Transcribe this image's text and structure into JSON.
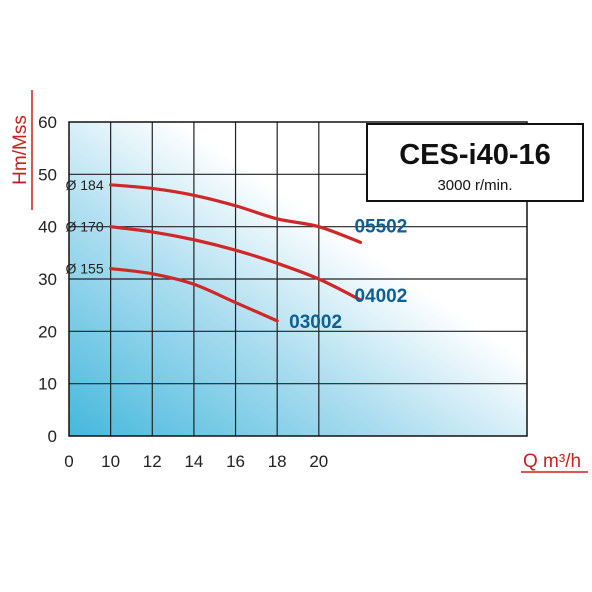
{
  "chart_data": {
    "type": "line",
    "title": "CES-i40-16",
    "subtitle": "3000 r/min.",
    "xlabel": "Q m³/h",
    "ylabel": "Hm/Mss",
    "xlim": [
      0,
      22
    ],
    "ylim": [
      0,
      60
    ],
    "x_ticks": [
      {
        "value": 0,
        "label": "0"
      },
      {
        "value": 2,
        "label": "10"
      },
      {
        "value": 4,
        "label": "12"
      },
      {
        "value": 6,
        "label": "14"
      },
      {
        "value": 8,
        "label": "16"
      },
      {
        "value": 10,
        "label": "18"
      },
      {
        "value": 12,
        "label": "20"
      }
    ],
    "y_ticks": [
      0,
      10,
      20,
      30,
      40,
      50,
      60
    ],
    "grid": true,
    "series": [
      {
        "name": "05502",
        "impeller": "Ø 184",
        "color": "#d02828",
        "points": [
          [
            10,
            48
          ],
          [
            12,
            47.3
          ],
          [
            14,
            46
          ],
          [
            16,
            44
          ],
          [
            18,
            41.5
          ],
          [
            20,
            40
          ],
          [
            22,
            37
          ]
        ]
      },
      {
        "name": "04002",
        "impeller": "Ø 170",
        "color": "#d02828",
        "points": [
          [
            10,
            40
          ],
          [
            12,
            39
          ],
          [
            14,
            37.5
          ],
          [
            16,
            35.5
          ],
          [
            18,
            33
          ],
          [
            20,
            30
          ],
          [
            22,
            26
          ]
        ]
      },
      {
        "name": "03002",
        "impeller": "Ø 155",
        "color": "#d02828",
        "points": [
          [
            10,
            32
          ],
          [
            12,
            31
          ],
          [
            14,
            29
          ],
          [
            16,
            25.5
          ],
          [
            18,
            22
          ]
        ]
      }
    ]
  }
}
